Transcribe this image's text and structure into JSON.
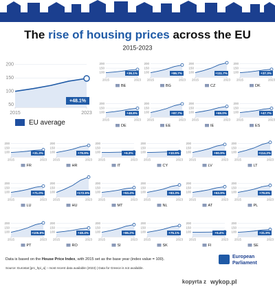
{
  "header": {
    "title_parts": [
      "The ",
      "rise of housing prices",
      " across the EU"
    ],
    "subtitle": "2015-2023"
  },
  "chart_data": [
    {
      "type": "line",
      "label": "EU average",
      "x": [
        2015,
        2017,
        2019,
        2021,
        2023
      ],
      "values": [
        100,
        110,
        122,
        138,
        148.1
      ],
      "annotation": "+48.1%",
      "xlim": [
        2015,
        2023
      ],
      "xticks": [
        2015,
        2023
      ],
      "ylim": [
        40,
        215
      ],
      "yticks": [
        50,
        100,
        150,
        200
      ],
      "color": "#1f5aa6",
      "grid": true
    },
    {
      "type": "line",
      "label": "BE",
      "x": [
        2015,
        2017,
        2019,
        2021,
        2023
      ],
      "values": [
        100,
        107,
        116,
        129,
        136.1
      ],
      "annotation": "+36.1%",
      "xlim": [
        2015,
        2023
      ],
      "xticks": [
        2015,
        2023
      ],
      "ylim": [
        50,
        275
      ],
      "yticks": [
        100,
        150,
        200
      ],
      "color": "#1f5aa6",
      "grid": true
    },
    {
      "type": "line",
      "label": "BG",
      "x": [
        2015,
        2017,
        2019,
        2021,
        2023
      ],
      "values": [
        100,
        117,
        139,
        169,
        186.7
      ],
      "annotation": "+86.7%",
      "xlim": [
        2015,
        2023
      ],
      "xticks": [
        2015,
        2023
      ],
      "ylim": [
        50,
        275
      ],
      "yticks": [
        100,
        150,
        200
      ],
      "color": "#1f5aa6",
      "grid": true
    },
    {
      "type": "line",
      "label": "CZ",
      "x": [
        2015,
        2017,
        2019,
        2021,
        2023
      ],
      "values": [
        100,
        122,
        150,
        189,
        211.7
      ],
      "annotation": "+111.7%",
      "xlim": [
        2015,
        2023
      ],
      "xticks": [
        2015,
        2023
      ],
      "ylim": [
        50,
        275
      ],
      "yticks": [
        100,
        150,
        200
      ],
      "color": "#1f5aa6",
      "grid": true
    },
    {
      "type": "line",
      "label": "DK",
      "x": [
        2015,
        2017,
        2019,
        2021,
        2023
      ],
      "values": [
        100,
        107,
        117,
        130,
        137.3
      ],
      "annotation": "+37.3%",
      "xlim": [
        2015,
        2023
      ],
      "xticks": [
        2015,
        2023
      ],
      "ylim": [
        50,
        275
      ],
      "yticks": [
        100,
        150,
        200
      ],
      "color": "#1f5aa6",
      "grid": true
    },
    {
      "type": "line",
      "label": "DE",
      "x": [
        2015,
        2017,
        2019,
        2021,
        2023
      ],
      "values": [
        100,
        110,
        122,
        139,
        148.8
      ],
      "annotation": "+48.8%",
      "xlim": [
        2015,
        2023
      ],
      "xticks": [
        2015,
        2023
      ],
      "ylim": [
        50,
        275
      ],
      "yticks": [
        100,
        150,
        200
      ],
      "color": "#1f5aa6",
      "grid": true
    },
    {
      "type": "line",
      "label": "EE",
      "x": [
        2015,
        2017,
        2019,
        2021,
        2023
      ],
      "values": [
        100,
        120,
        144,
        178,
        197.7
      ],
      "annotation": "+97.7%",
      "xlim": [
        2015,
        2023
      ],
      "xticks": [
        2015,
        2023
      ],
      "ylim": [
        50,
        275
      ],
      "yticks": [
        100,
        150,
        200
      ],
      "color": "#1f5aa6",
      "grid": true
    },
    {
      "type": "line",
      "label": "IE",
      "x": [
        2015,
        2017,
        2019,
        2021,
        2023
      ],
      "values": [
        100,
        114,
        131,
        155,
        169
      ],
      "annotation": "+69.0%",
      "xlim": [
        2015,
        2023
      ],
      "xticks": [
        2015,
        2023
      ],
      "ylim": [
        50,
        275
      ],
      "yticks": [
        100,
        150,
        200
      ],
      "color": "#1f5aa6",
      "grid": true
    },
    {
      "type": "line",
      "label": "ES",
      "x": [
        2015,
        2017,
        2019,
        2021,
        2023
      ],
      "values": [
        100,
        110,
        121,
        138,
        147.7
      ],
      "annotation": "+47.7%",
      "xlim": [
        2015,
        2023
      ],
      "xticks": [
        2015,
        2023
      ],
      "ylim": [
        50,
        275
      ],
      "yticks": [
        100,
        150,
        200
      ],
      "color": "#1f5aa6",
      "grid": true
    },
    {
      "type": "line",
      "label": "FR",
      "x": [
        2015,
        2017,
        2019,
        2021,
        2023
      ],
      "values": [
        100,
        106,
        114,
        125,
        131.3
      ],
      "annotation": "+31.3%",
      "xlim": [
        2015,
        2023
      ],
      "xticks": [
        2015,
        2023
      ],
      "ylim": [
        50,
        275
      ],
      "yticks": [
        100,
        150,
        200
      ],
      "color": "#1f5aa6",
      "grid": true
    },
    {
      "type": "line",
      "label": "HR",
      "x": [
        2015,
        2017,
        2019,
        2021,
        2023
      ],
      "values": [
        100,
        116,
        136,
        164,
        179.9
      ],
      "annotation": "+79.9%",
      "xlim": [
        2015,
        2023
      ],
      "xticks": [
        2015,
        2023
      ],
      "ylim": [
        50,
        275
      ],
      "yticks": [
        100,
        150,
        200
      ],
      "color": "#1f5aa6",
      "grid": true
    },
    {
      "type": "line",
      "label": "IT",
      "x": [
        2015,
        2017,
        2019,
        2021,
        2023
      ],
      "values": [
        100,
        101,
        103,
        105,
        106.3
      ],
      "annotation": "+6.3%",
      "xlim": [
        2015,
        2023
      ],
      "xticks": [
        2015,
        2023
      ],
      "ylim": [
        50,
        275
      ],
      "yticks": [
        100,
        150,
        200
      ],
      "color": "#1f5aa6",
      "grid": true
    },
    {
      "type": "line",
      "label": "CY",
      "x": [
        2015,
        2017,
        2019,
        2021,
        2023
      ],
      "values": [
        100,
        102,
        105,
        108,
        110.5
      ],
      "annotation": "+10.5%",
      "xlim": [
        2015,
        2023
      ],
      "xticks": [
        2015,
        2023
      ],
      "ylim": [
        50,
        275
      ],
      "yticks": [
        100,
        150,
        200
      ],
      "color": "#1f5aa6",
      "grid": true
    },
    {
      "type": "line",
      "label": "LV",
      "x": [
        2015,
        2017,
        2019,
        2021,
        2023
      ],
      "values": [
        100,
        118,
        141,
        173,
        190.9
      ],
      "annotation": "+90.9%",
      "xlim": [
        2015,
        2023
      ],
      "xticks": [
        2015,
        2023
      ],
      "ylim": [
        50,
        275
      ],
      "yticks": [
        100,
        150,
        200
      ],
      "color": "#1f5aa6",
      "grid": true
    },
    {
      "type": "line",
      "label": "LT",
      "x": [
        2015,
        2017,
        2019,
        2021,
        2023
      ],
      "values": [
        100,
        123,
        151,
        191,
        214.2
      ],
      "annotation": "+114.2%",
      "xlim": [
        2015,
        2023
      ],
      "xticks": [
        2015,
        2023
      ],
      "ylim": [
        50,
        275
      ],
      "yticks": [
        100,
        150,
        200
      ],
      "color": "#1f5aa6",
      "grid": true
    },
    {
      "type": "line",
      "label": "LU",
      "x": [
        2015,
        2017,
        2019,
        2021,
        2023
      ],
      "values": [
        100,
        114,
        132,
        157,
        171
      ],
      "annotation": "+71.0%",
      "xlim": [
        2015,
        2023
      ],
      "xticks": [
        2015,
        2023
      ],
      "ylim": [
        50,
        275
      ],
      "yticks": [
        100,
        150,
        200
      ],
      "color": "#1f5aa6",
      "grid": true
    },
    {
      "type": "line",
      "label": "HU",
      "x": [
        2015,
        2017,
        2019,
        2021,
        2023
      ],
      "values": [
        100,
        135,
        178,
        238,
        272.5
      ],
      "annotation": "+172.5%",
      "xlim": [
        2015,
        2023
      ],
      "xticks": [
        2015,
        2023
      ],
      "ylim": [
        50,
        275
      ],
      "yticks": [
        100,
        150,
        200
      ],
      "color": "#1f5aa6",
      "grid": true
    },
    {
      "type": "line",
      "label": "MT",
      "x": [
        2015,
        2017,
        2019,
        2021,
        2023
      ],
      "values": [
        100,
        111,
        124,
        143,
        153.4
      ],
      "annotation": "+53.4%",
      "xlim": [
        2015,
        2023
      ],
      "xticks": [
        2015,
        2023
      ],
      "ylim": [
        50,
        275
      ],
      "yticks": [
        100,
        150,
        200
      ],
      "color": "#1f5aa6",
      "grid": true
    },
    {
      "type": "line",
      "label": "NL",
      "x": [
        2015,
        2017,
        2019,
        2021,
        2023
      ],
      "values": [
        100,
        117,
        137,
        167,
        183.3
      ],
      "annotation": "+83.3%",
      "xlim": [
        2015,
        2023
      ],
      "xticks": [
        2015,
        2023
      ],
      "ylim": [
        50,
        275
      ],
      "yticks": [
        100,
        150,
        200
      ],
      "color": "#1f5aa6",
      "grid": true
    },
    {
      "type": "line",
      "label": "AT",
      "x": [
        2015,
        2017,
        2019,
        2021,
        2023
      ],
      "values": [
        100,
        113,
        129,
        151,
        163.9
      ],
      "annotation": "+63.9%",
      "xlim": [
        2015,
        2023
      ],
      "xticks": [
        2015,
        2023
      ],
      "ylim": [
        50,
        275
      ],
      "yticks": [
        100,
        150,
        200
      ],
      "color": "#1f5aa6",
      "grid": true
    },
    {
      "type": "line",
      "label": "PL",
      "x": [
        2015,
        2017,
        2019,
        2021,
        2023
      ],
      "values": [
        100,
        116,
        136,
        164,
        179.6
      ],
      "annotation": "+79.6%",
      "xlim": [
        2015,
        2023
      ],
      "xticks": [
        2015,
        2023
      ],
      "ylim": [
        50,
        275
      ],
      "yticks": [
        100,
        150,
        200
      ],
      "color": "#1f5aa6",
      "grid": true
    },
    {
      "type": "line",
      "label": "PT",
      "x": [
        2015,
        2017,
        2019,
        2021,
        2023
      ],
      "values": [
        100,
        121,
        148,
        185,
        205.8
      ],
      "annotation": "+105.8%",
      "xlim": [
        2015,
        2023
      ],
      "xticks": [
        2015,
        2023
      ],
      "ylim": [
        50,
        275
      ],
      "yticks": [
        100,
        150,
        200
      ],
      "color": "#1f5aa6",
      "grid": true
    },
    {
      "type": "line",
      "label": "RO",
      "x": [
        2015,
        2017,
        2019,
        2021,
        2023
      ],
      "values": [
        100,
        110,
        122,
        139,
        148.4
      ],
      "annotation": "+48.4%",
      "xlim": [
        2015,
        2023
      ],
      "xticks": [
        2015,
        2023
      ],
      "ylim": [
        50,
        275
      ],
      "yticks": [
        100,
        150,
        200
      ],
      "color": "#1f5aa6",
      "grid": true
    },
    {
      "type": "line",
      "label": "SI",
      "x": [
        2015,
        2017,
        2019,
        2021,
        2023
      ],
      "values": [
        100,
        117,
        139,
        169,
        186.2
      ],
      "annotation": "+86.2%",
      "xlim": [
        2015,
        2023
      ],
      "xticks": [
        2015,
        2023
      ],
      "ylim": [
        50,
        275
      ],
      "yticks": [
        100,
        150,
        200
      ],
      "color": "#1f5aa6",
      "grid": true
    },
    {
      "type": "line",
      "label": "SK",
      "x": [
        2015,
        2017,
        2019,
        2021,
        2023
      ],
      "values": [
        100,
        115,
        134,
        160,
        175.1
      ],
      "annotation": "+75.1%",
      "xlim": [
        2015,
        2023
      ],
      "xticks": [
        2015,
        2023
      ],
      "ylim": [
        50,
        275
      ],
      "yticks": [
        100,
        150,
        200
      ],
      "color": "#1f5aa6",
      "grid": true
    },
    {
      "type": "line",
      "label": "FI",
      "x": [
        2015,
        2017,
        2019,
        2021,
        2023
      ],
      "values": [
        100,
        101,
        102,
        104,
        105.4
      ],
      "annotation": "+5.4%",
      "xlim": [
        2015,
        2023
      ],
      "xticks": [
        2015,
        2023
      ],
      "ylim": [
        50,
        275
      ],
      "yticks": [
        100,
        150,
        200
      ],
      "color": "#1f5aa6",
      "grid": true
    },
    {
      "type": "line",
      "label": "SE",
      "x": [
        2015,
        2017,
        2019,
        2021,
        2023
      ],
      "values": [
        100,
        106,
        114,
        126,
        131.9
      ],
      "annotation": "+31.9%",
      "xlim": [
        2015,
        2023
      ],
      "xticks": [
        2015,
        2023
      ],
      "ylim": [
        50,
        275
      ],
      "yticks": [
        100,
        150,
        200
      ],
      "color": "#1f5aa6",
      "grid": true
    }
  ],
  "footer": {
    "note_parts": [
      "Data is based on the ",
      "House Price Index",
      ", with 2015 set as the base year (index value = 100)."
    ],
    "source": "Source: Eurostat [prc_hpi_a] – most recent data available (2023)  |  Data for Greece is not available.",
    "logo_lines": [
      "European",
      "Parliament"
    ],
    "watermark": [
      "kopyrta z",
      "wykop.pl"
    ]
  }
}
